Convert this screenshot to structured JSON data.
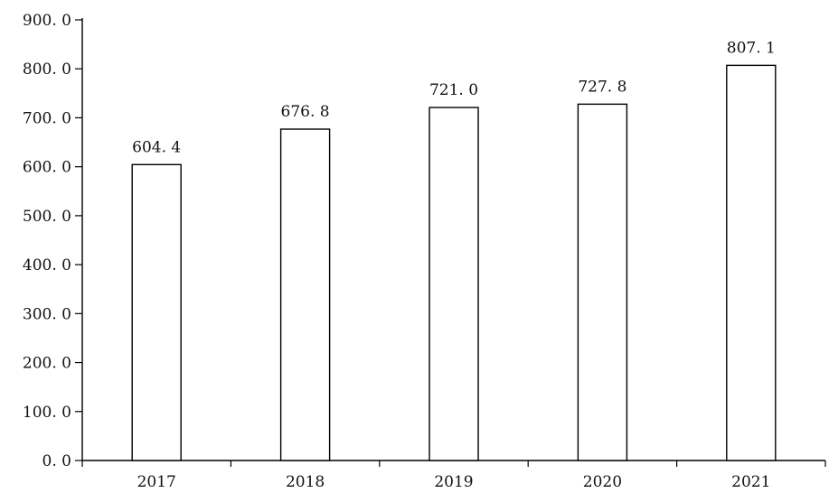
{
  "chart_data": {
    "type": "bar",
    "title": "",
    "xlabel": "",
    "ylabel": "",
    "categories": [
      "2017",
      "2018",
      "2019",
      "2020",
      "2021"
    ],
    "values": [
      604.4,
      676.8,
      721.0,
      727.8,
      807.1
    ],
    "value_labels": [
      "604. 4",
      "676. 8",
      "721. 0",
      "727. 8",
      "807. 1"
    ],
    "ylim": [
      0,
      900
    ],
    "y_ticks": [
      0,
      100,
      200,
      300,
      400,
      500,
      600,
      700,
      800,
      900
    ],
    "y_tick_labels": [
      "0. 0",
      "100. 0",
      "200. 0",
      "300. 0",
      "400. 0",
      "500. 0",
      "600. 0",
      "700. 0",
      "800. 0",
      "900. 0"
    ],
    "grid": false,
    "legend": "none",
    "colors": {
      "bar_fill": "#ffffff",
      "bar_stroke": "#000000",
      "axis": "#000000",
      "text": "#111111"
    }
  }
}
